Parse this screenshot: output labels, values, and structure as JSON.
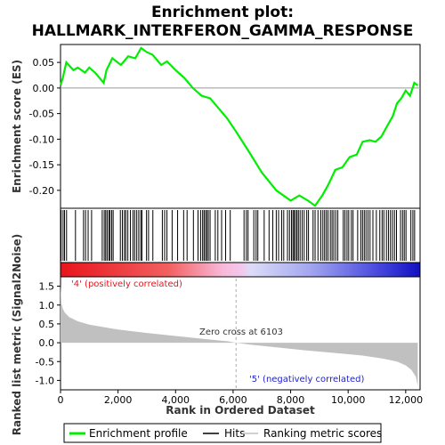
{
  "chart_data": {
    "type": "line",
    "title_line1": "Enrichment plot:",
    "title_line2": "HALLMARK_INTERFERON_GAMMA_RESPONSE",
    "es_ylabel": "Enrichment score (ES)",
    "rank_ylabel": "Ranked list metric (Signal2Noise)",
    "xlabel": "Rank in Ordered Dataset",
    "xlim": [
      0,
      12500
    ],
    "x_ticks": [
      0,
      2000,
      4000,
      6000,
      8000,
      10000,
      12000
    ],
    "x_tick_labels": [
      "0",
      "2,000",
      "4,000",
      "6,000",
      "8,000",
      "10,000",
      "12,000"
    ],
    "es_ylim": [
      -0.235,
      0.085
    ],
    "es_ticks": [
      0.05,
      0.0,
      -0.05,
      -0.1,
      -0.15,
      -0.2
    ],
    "es_tick_labels": [
      "0.05",
      "0.00",
      "-0.05",
      "-0.10",
      "-0.15",
      "-0.20"
    ],
    "rank_ylim": [
      -1.25,
      1.75
    ],
    "rank_ticks": [
      1.5,
      1.0,
      0.5,
      0.0,
      -0.5,
      -1.0
    ],
    "rank_tick_labels": [
      "1.5",
      "1.0",
      "0.5",
      "0.0",
      "-0.5",
      "-1.0"
    ],
    "enrichment_profile": {
      "name": "Enrichment profile",
      "color": "#00ee00",
      "x": [
        0,
        80,
        200,
        450,
        600,
        850,
        1000,
        1200,
        1500,
        1600,
        1800,
        2100,
        2350,
        2600,
        2800,
        3000,
        3200,
        3500,
        3700,
        4000,
        4300,
        4600,
        4900,
        5200,
        5500,
        5800,
        6100,
        6500,
        7000,
        7500,
        8000,
        8300,
        8600,
        8850,
        9100,
        9300,
        9550,
        9800,
        10050,
        10300,
        10500,
        10750,
        10950,
        11150,
        11350,
        11550,
        11700,
        11850,
        12000,
        12150,
        12300,
        12420
      ],
      "y": [
        0.005,
        0.02,
        0.05,
        0.035,
        0.04,
        0.03,
        0.04,
        0.03,
        0.01,
        0.035,
        0.058,
        0.045,
        0.062,
        0.058,
        0.078,
        0.07,
        0.065,
        0.045,
        0.052,
        0.035,
        0.02,
        0.0,
        -0.015,
        -0.02,
        -0.04,
        -0.06,
        -0.085,
        -0.12,
        -0.165,
        -0.2,
        -0.22,
        -0.21,
        -0.22,
        -0.23,
        -0.21,
        -0.19,
        -0.16,
        -0.155,
        -0.135,
        -0.13,
        -0.105,
        -0.102,
        -0.105,
        -0.095,
        -0.075,
        -0.055,
        -0.03,
        -0.02,
        -0.005,
        -0.015,
        0.01,
        0.005
      ]
    },
    "hits": {
      "name": "Hits",
      "color": "#000000",
      "x": [
        20,
        90,
        140,
        210,
        520,
        800,
        870,
        960,
        1080,
        1450,
        1520,
        1570,
        1620,
        1680,
        1720,
        1780,
        1830,
        2080,
        2150,
        2220,
        2270,
        2340,
        2430,
        2520,
        2580,
        2650,
        2720,
        2790,
        2830,
        2990,
        3060,
        3210,
        3540,
        3620,
        3700,
        3880,
        4070,
        4280,
        4400,
        4620,
        4780,
        4870,
        4940,
        4990,
        5040,
        5090,
        5140,
        5200,
        5380,
        5470,
        5600,
        5740,
        5900,
        6380,
        6460,
        6520,
        6720,
        6800,
        6860,
        7080,
        7250,
        7380,
        7500,
        7580,
        7690,
        7760,
        7890,
        7960,
        8030,
        8080,
        8120,
        8170,
        8220,
        8270,
        8330,
        8400,
        8470,
        8560,
        8620,
        8780,
        8850,
        8950,
        9050,
        9120,
        9180,
        9240,
        9300,
        9380,
        9440,
        9500,
        9570,
        9640,
        9830,
        9890,
        9960,
        10020,
        10110,
        10170,
        10330,
        10440,
        10500,
        10560,
        10620,
        10690,
        10760,
        10860,
        10980,
        11100,
        11180,
        11240,
        11330,
        11400,
        11470,
        11540,
        11610,
        11680,
        11820,
        11890,
        11950,
        12010,
        12180,
        12250,
        12310
      ]
    },
    "ranking_metric": {
      "name": "Ranking metric scores",
      "color": "#c0c0c0",
      "x": [
        0,
        30,
        80,
        150,
        300,
        600,
        1000,
        2000,
        3000,
        4000,
        5000,
        5800,
        6103,
        6600,
        7500,
        8500,
        9500,
        10500,
        11200,
        11700,
        12000,
        12200,
        12350,
        12420
      ],
      "y": [
        1.55,
        1.05,
        0.9,
        0.8,
        0.68,
        0.57,
        0.48,
        0.35,
        0.26,
        0.18,
        0.1,
        0.04,
        0.0,
        -0.05,
        -0.12,
        -0.2,
        -0.27,
        -0.34,
        -0.42,
        -0.5,
        -0.6,
        -0.72,
        -0.9,
        -1.15
      ]
    },
    "zero_cross_label": "Zero cross at 6103",
    "zero_cross_x": 6103,
    "pos_label": "'4' (positively correlated)",
    "neg_label": "'5' (negatively correlated)",
    "legend_position": "bottom"
  }
}
